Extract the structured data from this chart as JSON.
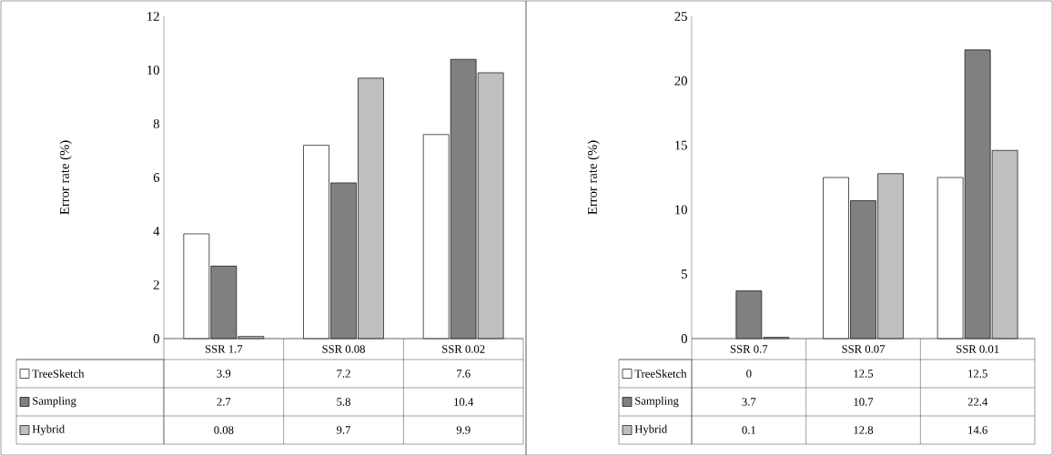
{
  "chart_data": [
    {
      "type": "bar",
      "ylabel": "Error rate (%)",
      "categories": [
        "SSR 1.7",
        "SSR 0.08",
        "SSR 0.02"
      ],
      "series": [
        {
          "name": "TreeSketch",
          "color": "#ffffff",
          "values": [
            3.9,
            7.2,
            7.6
          ]
        },
        {
          "name": "Sampling",
          "color": "#808080",
          "values": [
            2.7,
            5.8,
            10.4
          ]
        },
        {
          "name": "Hybrid",
          "color": "#bfbfbf",
          "values": [
            0.08,
            9.7,
            9.9
          ]
        }
      ],
      "ylim": [
        0,
        12
      ],
      "yticks": [
        0,
        2,
        4,
        6,
        8,
        10,
        12
      ],
      "data_labels": true,
      "legend": "bottom"
    },
    {
      "type": "bar",
      "ylabel": "Error rate (%)",
      "categories": [
        "SSR 0.7",
        "SSR 0.07",
        "SSR 0.01"
      ],
      "series": [
        {
          "name": "TreeSketch",
          "color": "#ffffff",
          "values": [
            0,
            12.5,
            12.5
          ]
        },
        {
          "name": "Sampling",
          "color": "#808080",
          "values": [
            3.7,
            10.7,
            22.4
          ]
        },
        {
          "name": "Hybrid",
          "color": "#bfbfbf",
          "values": [
            0.1,
            12.8,
            14.6
          ]
        }
      ],
      "ylim": [
        0,
        25
      ],
      "yticks": [
        0,
        5,
        10,
        15,
        20,
        25
      ],
      "data_labels": true,
      "legend": "bottom"
    }
  ]
}
